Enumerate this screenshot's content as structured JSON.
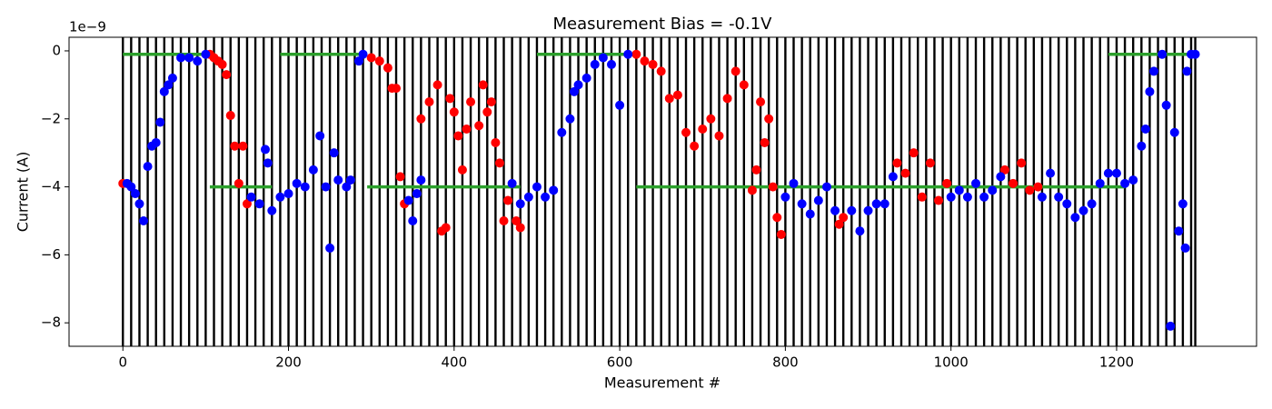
{
  "chart_data": {
    "type": "scatter",
    "title": "Measurement Bias = -0.1V",
    "x_label": "Measurement #",
    "y_label": "Current (A)",
    "y_offset_text": "1e−9",
    "xlim": [
      -65,
      1369
    ],
    "ylim": [
      -8.69,
      0.4
    ],
    "xticks": [
      0,
      200,
      400,
      600,
      800,
      1000,
      1200
    ],
    "yticks": [
      {
        "value": -8,
        "label": "−8"
      },
      {
        "value": -6,
        "label": "−6"
      },
      {
        "value": -4,
        "label": "−4"
      },
      {
        "value": -2,
        "label": "−2"
      },
      0
    ],
    "vline_color": "#000000",
    "vlines": [
      0,
      10,
      20,
      30,
      40,
      50,
      60,
      70,
      80,
      90,
      100,
      110,
      120,
      130,
      140,
      150,
      160,
      170,
      180,
      190,
      200,
      210,
      220,
      230,
      240,
      250,
      260,
      270,
      280,
      290,
      300,
      310,
      320,
      330,
      340,
      350,
      360,
      370,
      380,
      390,
      400,
      410,
      420,
      430,
      440,
      450,
      460,
      470,
      480,
      490,
      500,
      510,
      520,
      530,
      540,
      550,
      560,
      570,
      580,
      590,
      600,
      610,
      620,
      630,
      640,
      650,
      660,
      670,
      680,
      690,
      700,
      710,
      720,
      730,
      740,
      750,
      760,
      770,
      780,
      790,
      800,
      810,
      820,
      830,
      840,
      850,
      860,
      870,
      880,
      890,
      900,
      910,
      920,
      930,
      940,
      950,
      960,
      970,
      980,
      990,
      1000,
      1010,
      1020,
      1030,
      1040,
      1050,
      1060,
      1070,
      1080,
      1090,
      1100,
      1110,
      1120,
      1130,
      1140,
      1150,
      1160,
      1170,
      1180,
      1190,
      1200,
      1210,
      1220,
      1230,
      1240,
      1250,
      1260,
      1270,
      1280,
      1290,
      1295
    ],
    "hline_color": "#2ca02c",
    "hlines": [
      {
        "xmin": 0,
        "xmax": 100,
        "y": -0.1
      },
      {
        "xmin": 190,
        "xmax": 290,
        "y": -0.1
      },
      {
        "xmin": 500,
        "xmax": 620,
        "y": -0.1
      },
      {
        "xmin": 1190,
        "xmax": 1295,
        "y": -0.1
      },
      {
        "xmin": 105,
        "xmax": 180,
        "y": -4.0
      },
      {
        "xmin": 295,
        "xmax": 480,
        "y": -4.0
      },
      {
        "xmin": 620,
        "xmax": 1210,
        "y": -4.0
      }
    ],
    "series": [
      {
        "color": "#ff0000",
        "x": [
          0,
          105,
          110,
          115,
          120,
          125,
          130,
          135,
          140,
          145,
          150,
          300,
          310,
          320,
          325,
          330,
          335,
          340,
          360,
          370,
          380,
          385,
          390,
          395,
          400,
          405,
          410,
          415,
          420,
          430,
          435,
          440,
          445,
          450,
          455,
          460,
          465,
          475,
          480,
          620,
          630,
          640,
          650,
          660,
          670,
          680,
          690,
          700,
          710,
          720,
          730,
          740,
          750,
          760,
          765,
          770,
          775,
          780,
          785,
          790,
          795,
          865,
          870,
          935,
          945,
          955,
          965,
          975,
          985,
          995,
          1065,
          1075,
          1085,
          1095,
          1105
        ],
        "values": [
          -3.9,
          -0.1,
          -0.2,
          -0.3,
          -0.4,
          -0.7,
          -1.9,
          -2.8,
          -3.9,
          -2.8,
          -4.5,
          -0.2,
          -0.3,
          -0.5,
          -1.1,
          -1.1,
          -3.7,
          -4.5,
          -2.0,
          -1.5,
          -1.0,
          -5.3,
          -5.2,
          -1.4,
          -1.8,
          -2.5,
          -3.5,
          -2.3,
          -1.5,
          -2.2,
          -1.0,
          -1.8,
          -1.5,
          -2.7,
          -3.3,
          -5.0,
          -4.4,
          -5.0,
          -5.2,
          -0.1,
          -0.3,
          -0.4,
          -0.6,
          -1.4,
          -1.3,
          -2.4,
          -2.8,
          -2.3,
          -2.0,
          -2.5,
          -1.4,
          -0.6,
          -1.0,
          -4.1,
          -3.5,
          -1.5,
          -2.7,
          -2.0,
          -4.0,
          -4.9,
          -5.4,
          -5.1,
          -4.9,
          -3.3,
          -3.6,
          -3.0,
          -4.3,
          -3.3,
          -4.4,
          -3.9,
          -3.5,
          -3.9,
          -3.3,
          -4.1,
          -4.0
        ]
      },
      {
        "color": "#0000ff",
        "x": [
          5,
          10,
          15,
          20,
          25,
          30,
          35,
          40,
          45,
          50,
          55,
          60,
          70,
          80,
          90,
          100,
          155,
          165,
          172,
          175,
          180,
          190,
          200,
          210,
          220,
          230,
          238,
          245,
          250,
          255,
          260,
          270,
          275,
          285,
          290,
          345,
          350,
          355,
          360,
          470,
          480,
          490,
          500,
          510,
          520,
          530,
          540,
          545,
          550,
          560,
          570,
          580,
          590,
          600,
          610,
          800,
          810,
          820,
          830,
          840,
          850,
          860,
          880,
          890,
          900,
          910,
          920,
          930,
          1000,
          1010,
          1020,
          1030,
          1040,
          1050,
          1060,
          1110,
          1120,
          1130,
          1140,
          1150,
          1160,
          1170,
          1180,
          1190,
          1200,
          1210,
          1220,
          1230,
          1235,
          1240,
          1245,
          1255,
          1260,
          1265,
          1270,
          1275,
          1280,
          1283,
          1285,
          1290,
          1295
        ],
        "values": [
          -3.9,
          -4.0,
          -4.2,
          -4.5,
          -5.0,
          -3.4,
          -2.8,
          -2.7,
          -2.1,
          -1.2,
          -1.0,
          -0.8,
          -0.2,
          -0.2,
          -0.3,
          -0.1,
          -4.3,
          -4.5,
          -2.9,
          -3.3,
          -4.7,
          -4.3,
          -4.2,
          -3.9,
          -4.0,
          -3.5,
          -2.5,
          -4.0,
          -5.8,
          -3.0,
          -3.8,
          -4.0,
          -3.8,
          -0.3,
          -0.1,
          -4.4,
          -5.0,
          -4.2,
          -3.8,
          -3.9,
          -4.5,
          -4.3,
          -4.0,
          -4.3,
          -4.1,
          -2.4,
          -2.0,
          -1.2,
          -1.0,
          -0.8,
          -0.4,
          -0.2,
          -0.4,
          -1.6,
          -0.1,
          -4.3,
          -3.9,
          -4.5,
          -4.8,
          -4.4,
          -4.0,
          -4.7,
          -4.7,
          -5.3,
          -4.7,
          -4.5,
          -4.5,
          -3.7,
          -4.3,
          -4.1,
          -4.3,
          -3.9,
          -4.3,
          -4.1,
          -3.7,
          -4.3,
          -3.6,
          -4.3,
          -4.5,
          -4.9,
          -4.7,
          -4.5,
          -3.9,
          -3.6,
          -3.6,
          -3.9,
          -3.8,
          -2.8,
          -2.3,
          -1.2,
          -0.6,
          -0.1,
          -1.6,
          -8.1,
          -2.4,
          -5.3,
          -4.5,
          -5.8,
          -0.6,
          -0.1,
          -0.1
        ]
      }
    ]
  }
}
